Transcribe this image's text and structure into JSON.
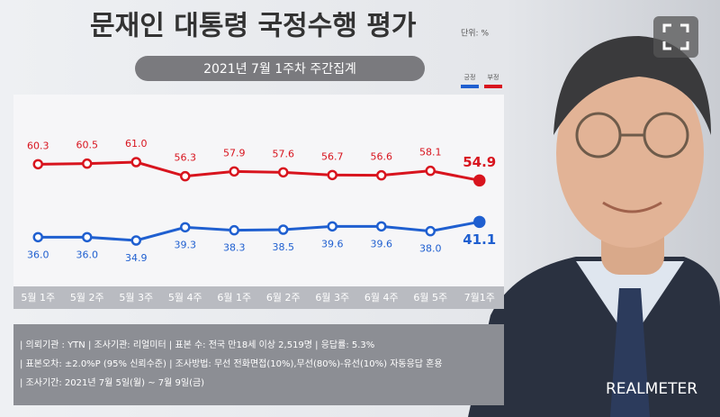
{
  "chart_data": {
    "type": "line",
    "title": "문재인 대통령 국정수행 평가",
    "unit": "단위: %",
    "subtitle": "2021년 7월 1주차 주간집계",
    "categories": [
      "5월 1주",
      "5월 2주",
      "5월 3주",
      "5월 4주",
      "6월 1주",
      "6월 2주",
      "6월 3주",
      "6월 4주",
      "6월 5주",
      "7월1주"
    ],
    "series": [
      {
        "name": "긍정",
        "color": "#1f5fd0",
        "values": [
          36.0,
          36.0,
          34.9,
          39.3,
          38.3,
          38.5,
          39.6,
          39.6,
          38.0,
          41.1
        ],
        "value_labels": [
          "36.0",
          "36.0",
          "34.9",
          "39.3",
          "38.3",
          "38.5",
          "39.6",
          "39.6",
          "38.0",
          "41.1"
        ]
      },
      {
        "name": "부정",
        "color": "#d8141e",
        "values": [
          60.3,
          60.5,
          61.0,
          56.3,
          57.9,
          57.6,
          56.7,
          56.6,
          58.1,
          54.9
        ],
        "value_labels": [
          "60.3",
          "60.5",
          "61.0",
          "56.3",
          "57.9",
          "57.6",
          "56.7",
          "56.6",
          "58.1",
          "54.9"
        ]
      }
    ],
    "ylim": [
      25,
      70
    ],
    "notes": [
      "| 의뢰기관 : YTN  | 조사기관: 리얼미터  | 표본 수: 전국 만18세 이상 2,519명  | 응답률: 5.3%",
      "| 표본오차: ±2.0%P (95% 신뢰수준)  | 조사방법: 무선 전화면접(10%),무선(80%)-유선(10%) 자동응답 혼용",
      "| 조사기간: 2021년 7월 5일(월) ~ 7월 9일(금)"
    ],
    "brand": "REALMETER"
  }
}
